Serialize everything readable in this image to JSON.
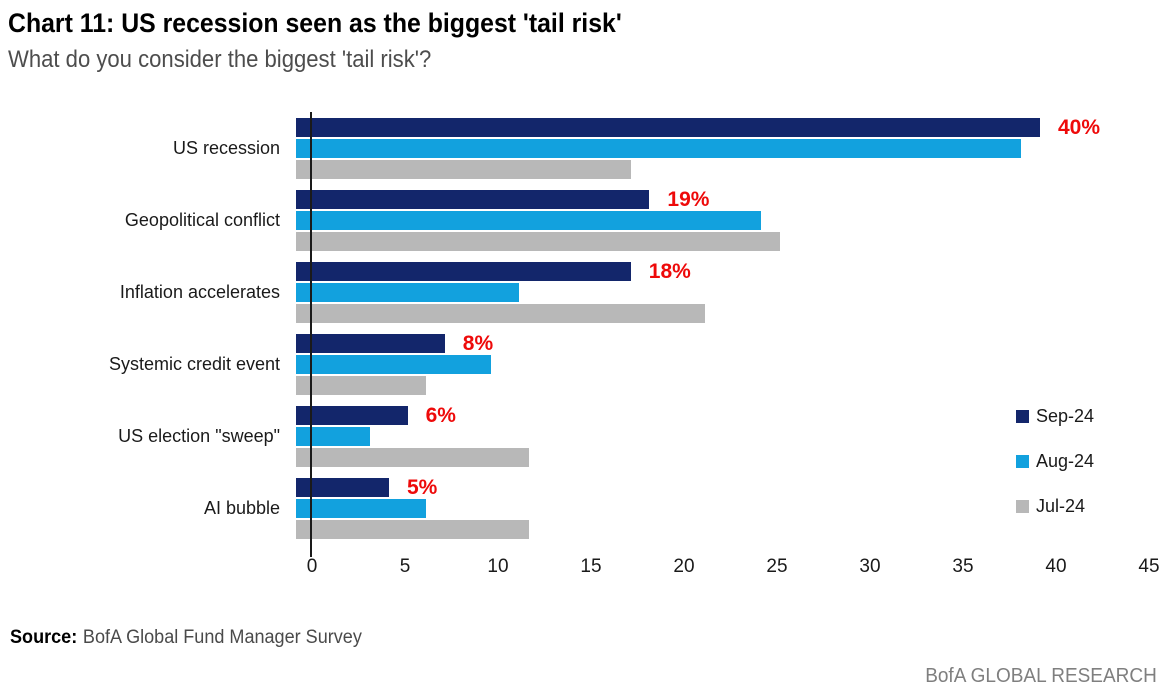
{
  "header": {
    "title": "Chart 11: US recession seen as the biggest 'tail risk'",
    "subtitle": "What do you consider the biggest 'tail risk'?"
  },
  "chart_data": {
    "type": "bar",
    "orientation": "horizontal",
    "title": "Chart 11: US recession seen as the biggest 'tail risk'",
    "subtitle": "What do you consider the biggest 'tail risk'?",
    "categories": [
      "US recession",
      "Geopolitical conflict",
      "Inflation accelerates",
      "Systemic credit event",
      "US election \"sweep\"",
      "AI bubble"
    ],
    "series": [
      {
        "name": "Sep-24",
        "color": "#13266b",
        "values": [
          40,
          19,
          18,
          8,
          6,
          5
        ]
      },
      {
        "name": "Aug-24",
        "color": "#12a1de",
        "values": [
          39,
          25,
          12,
          10.5,
          4,
          7
        ]
      },
      {
        "name": "Jul-24",
        "color": "#b8b8b8",
        "values": [
          18,
          26,
          22,
          7,
          12.5,
          12.5
        ]
      }
    ],
    "data_labels": [
      "40%",
      "19%",
      "18%",
      "8%",
      "6%",
      "5%"
    ],
    "data_labels_series": "Sep-24",
    "data_label_color": "#ee0a0a",
    "xlim": [
      0,
      45
    ],
    "x_ticks": [
      0,
      5,
      10,
      15,
      20,
      25,
      30,
      35,
      40,
      45
    ],
    "grid": false,
    "legend_position": "right-middle"
  },
  "footer": {
    "source_label": "Source:",
    "source_text": "BofA Global Fund Manager Survey",
    "brand": "BofA GLOBAL RESEARCH"
  }
}
